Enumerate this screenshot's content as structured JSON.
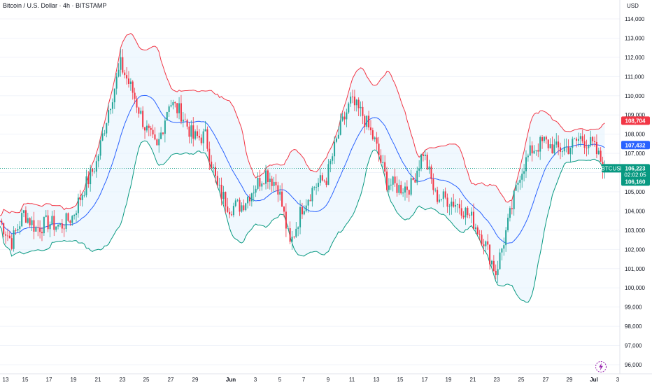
{
  "header": {
    "title": "Bitcoin / U.S. Dollar · 4h · BITSTAMP",
    "currency": "USD"
  },
  "colors": {
    "bull": "#26a69a",
    "bear": "#f23645",
    "band_upper": "#f23645",
    "band_lower": "#089981",
    "band_mid": "#2962ff",
    "band_fill": "#e3f2fd",
    "live_label": "#089981",
    "upper_label": "#f23645",
    "mid_label": "#2962ff"
  },
  "price_labels": {
    "upper": "108,704",
    "middle": "107,432",
    "symbol": "BTCUSD",
    "last_price": "106,223",
    "countdown": "02:02:05",
    "lower": "106,160"
  },
  "chart_data": {
    "type": "candlestick",
    "symbol": "BTCUSD",
    "interval": "4h",
    "title": "Bitcoin / U.S. Dollar · 4h · BITSTAMP",
    "y_unit": "USD",
    "ylim": [
      95800,
      114600
    ],
    "y_ticks": [
      96000,
      97000,
      98000,
      99000,
      100000,
      101000,
      102000,
      103000,
      104000,
      105000,
      106000,
      107000,
      108000,
      109000,
      110000,
      111000,
      112000,
      113000,
      114000
    ],
    "x_ticks": [
      "13",
      "15",
      "17",
      "19",
      "21",
      "23",
      "25",
      "27",
      "29",
      "Jun",
      "3",
      "5",
      "7",
      "9",
      "11",
      "13",
      "15",
      "17",
      "19",
      "21",
      "23",
      "25",
      "27",
      "29",
      "Jul",
      "3"
    ],
    "close_trend": [
      [
        "May 12",
        103500
      ],
      [
        "May 13",
        102400
      ],
      [
        "May 14",
        103900
      ],
      [
        "May 15",
        103100
      ],
      [
        "May 16",
        103400
      ],
      [
        "May 17",
        103200
      ],
      [
        "May 18",
        103700
      ],
      [
        "May 19",
        105200
      ],
      [
        "May 20",
        106500
      ],
      [
        "May 21",
        109300
      ],
      [
        "May 22",
        111600
      ],
      [
        "May 23",
        110200
      ],
      [
        "May 24",
        108400
      ],
      [
        "May 25",
        107200
      ],
      [
        "May 26",
        109700
      ],
      [
        "May 27",
        109100
      ],
      [
        "May 28",
        107800
      ],
      [
        "May 29",
        107900
      ],
      [
        "May 30",
        105200
      ],
      [
        "May 31",
        104200
      ],
      [
        "Jun 1",
        104300
      ],
      [
        "Jun 2",
        105200
      ],
      [
        "Jun 3",
        106000
      ],
      [
        "Jun 4",
        105300
      ],
      [
        "Jun 5",
        102200
      ],
      [
        "Jun 6",
        104200
      ],
      [
        "Jun 7",
        105300
      ],
      [
        "Jun 8",
        105700
      ],
      [
        "Jun 9",
        108000
      ],
      [
        "Jun 10",
        109700
      ],
      [
        "Jun 11",
        109000
      ],
      [
        "Jun 12",
        107600
      ],
      [
        "Jun 13",
        105500
      ],
      [
        "Jun 14",
        105200
      ],
      [
        "Jun 15",
        105300
      ],
      [
        "Jun 16",
        107100
      ],
      [
        "Jun 17",
        104800
      ],
      [
        "Jun 18",
        104600
      ],
      [
        "Jun 19",
        104300
      ],
      [
        "Jun 20",
        103600
      ],
      [
        "Jun 21",
        102500
      ],
      [
        "Jun 22",
        100800
      ],
      [
        "Jun 23",
        103300
      ],
      [
        "Jun 24",
        106000
      ],
      [
        "Jun 25",
        107200
      ],
      [
        "Jun 26",
        107600
      ],
      [
        "Jun 27",
        107200
      ],
      [
        "Jun 28",
        107300
      ],
      [
        "Jun 29",
        107800
      ],
      [
        "Jun 30",
        107400
      ],
      [
        "Jul 1",
        106223
      ]
    ],
    "bollinger_upper_last": 108704,
    "bollinger_middle_last": 107432,
    "bollinger_lower_last": 106160,
    "last_price": 106223
  }
}
